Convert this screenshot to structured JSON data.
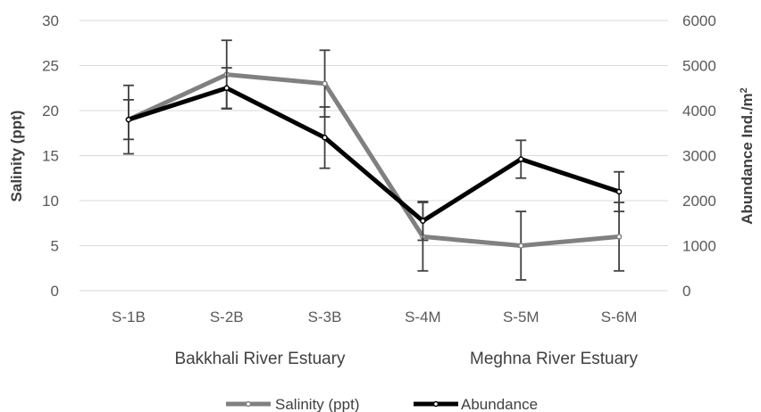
{
  "chart_data": {
    "type": "line",
    "categories": [
      "S-1B",
      "S-2B",
      "S-3B",
      "S-4M",
      "S-5M",
      "S-6M"
    ],
    "group_labels": [
      "Bakkhali River Estuary",
      "Meghna River Estuary"
    ],
    "y_left": {
      "label": "Salinity (ppt)",
      "lim": [
        0,
        30
      ],
      "ticks": [
        "0",
        "5",
        "10",
        "15",
        "20",
        "25",
        "30"
      ]
    },
    "y_right": {
      "label_main": "Abundance Ind./m",
      "label_sup": "2",
      "lim": [
        0,
        6000
      ],
      "ticks": [
        "0",
        "1000",
        "2000",
        "3000",
        "4000",
        "5000",
        "6000"
      ]
    },
    "series": [
      {
        "name": "Salinity (ppt)",
        "axis": "left",
        "color": "#808080",
        "values": [
          19,
          24,
          23,
          6,
          5,
          6
        ],
        "errors": [
          2.2,
          3.8,
          3.7,
          3.8,
          3.8,
          3.8
        ]
      },
      {
        "name": "Abundance",
        "axis": "right",
        "color": "#000000",
        "values": [
          3800,
          4500,
          3400,
          1550,
          2920,
          2200
        ],
        "errors": [
          760,
          450,
          680,
          430,
          420,
          440
        ]
      }
    ],
    "legend": "bottom",
    "grid": true
  }
}
